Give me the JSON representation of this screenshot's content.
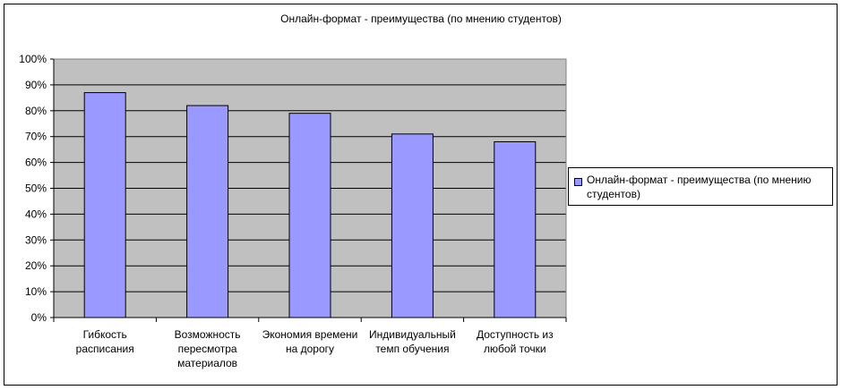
{
  "chart_data": {
    "type": "bar",
    "title": "Онлайн-формат - преимущества (по мнению студентов)",
    "xlabel": "",
    "ylabel": "",
    "categories": [
      "Гибкость расписания",
      "Возможность пересмотра материалов",
      "Экономия времени на дорогу",
      "Индивидуальный темп обучения",
      "Доступность из любой точки"
    ],
    "series": [
      {
        "name": "Онлайн-формат - преимущества (по мнению студентов)",
        "values": [
          0.87,
          0.82,
          0.79,
          0.71,
          0.68
        ]
      }
    ],
    "ylim": [
      0,
      1
    ],
    "yticks": [
      "0%",
      "10%",
      "20%",
      "30%",
      "40%",
      "50%",
      "60%",
      "70%",
      "80%",
      "90%",
      "100%"
    ],
    "grid": true,
    "legend_position": "right",
    "colors": {
      "bar": "#9999ff",
      "plot_background": "#c0c0c0",
      "gridline": "#000000"
    }
  }
}
